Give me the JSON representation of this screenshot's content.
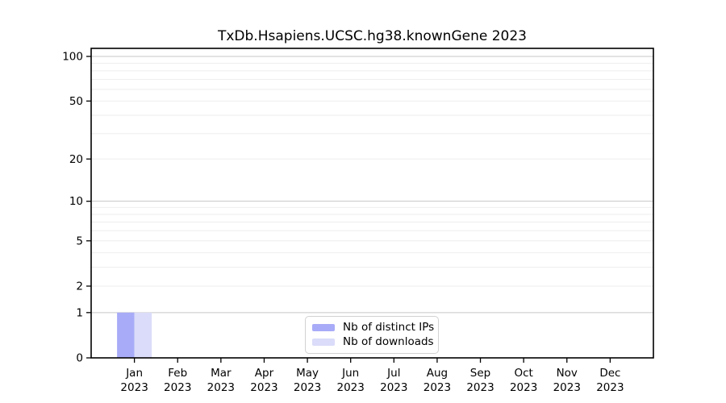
{
  "chart_data": {
    "type": "bar",
    "title": "TxDb.Hsapiens.UCSC.hg38.knownGene 2023",
    "x_axis": {
      "categories": [
        "Jan",
        "Feb",
        "Mar",
        "Apr",
        "May",
        "Jun",
        "Jul",
        "Aug",
        "Sep",
        "Oct",
        "Nov",
        "Dec"
      ],
      "year": "2023"
    },
    "y_axis": {
      "ticks": [
        0,
        1,
        2,
        5,
        10,
        20,
        50,
        100
      ],
      "scale": "log1p",
      "ylim": [
        0,
        100
      ],
      "minor_gridlines": [
        2,
        3,
        4,
        5,
        6,
        7,
        8,
        9,
        20,
        30,
        40,
        50,
        60,
        70,
        80,
        90
      ],
      "major_gridlines": [
        1,
        10,
        100
      ]
    },
    "series": [
      {
        "name": "Nb of distinct IPs",
        "color": "#a8abf7",
        "values": [
          1,
          0,
          0,
          0,
          0,
          0,
          0,
          0,
          0,
          0,
          0,
          0
        ]
      },
      {
        "name": "Nb of downloads",
        "color": "#dadcf9",
        "values": [
          1,
          0,
          0,
          0,
          0,
          0,
          0,
          0,
          0,
          0,
          0,
          0
        ]
      }
    ],
    "legend_position": "bottom-center-inside",
    "grid": {
      "major_color": "#c7c7c7",
      "minor_color": "#eeeeee"
    },
    "colors": {
      "axis": "#000000",
      "background": "#ffffff"
    }
  }
}
